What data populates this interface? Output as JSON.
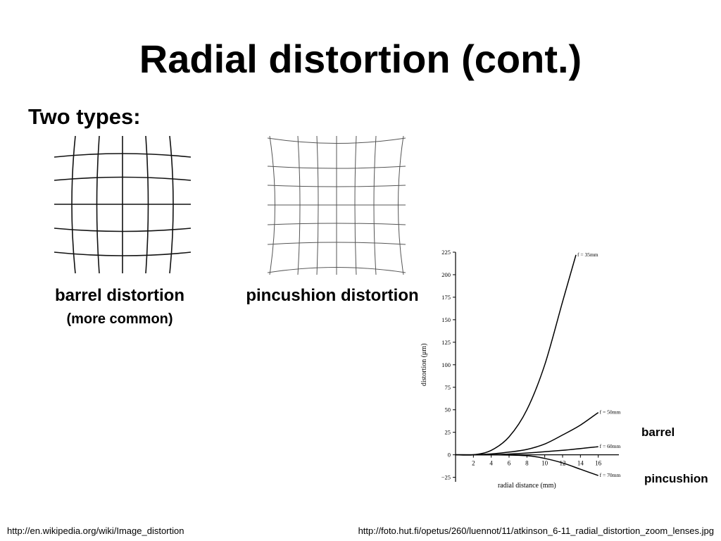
{
  "slide": {
    "title": "Radial distortion (cont.)",
    "subtitle": "Two types:",
    "barrel_caption": "barrel distortion",
    "barrel_subcaption": "(more common)",
    "pincushion_caption": "pincushion distortion",
    "barrel_label": "barrel",
    "pincushion_label": "pincushion",
    "footer_left": "http://en.wikipedia.org/wiki/Image_distortion",
    "footer_right": "http://foto.hut.fi/opetus/260/luennot/11/atkinson_6-11_radial_distortion_zoom_lenses.jpg"
  },
  "chart_data": {
    "type": "line",
    "title": "",
    "xlabel": "radial distance  (mm)",
    "ylabel": "distortion (μm)",
    "xlim": [
      0,
      18
    ],
    "ylim": [
      -30,
      225
    ],
    "x_ticks": [
      2,
      4,
      6,
      8,
      10,
      12,
      14,
      16
    ],
    "y_ticks": [
      -25,
      0,
      25,
      50,
      75,
      100,
      125,
      150,
      175,
      200,
      225
    ],
    "grid": false,
    "series": [
      {
        "name": "f = 35mm",
        "x": [
          0,
          2,
          4,
          6,
          8,
          10,
          12,
          13.5
        ],
        "y": [
          0,
          0,
          5,
          20,
          50,
          100,
          170,
          222
        ]
      },
      {
        "name": "f = 50mm",
        "x": [
          0,
          2,
          4,
          6,
          8,
          10,
          12,
          14,
          16
        ],
        "y": [
          0,
          0,
          1,
          3,
          6,
          12,
          22,
          33,
          47
        ]
      },
      {
        "name": "f = 60mm",
        "x": [
          0,
          4,
          8,
          12,
          16
        ],
        "y": [
          0,
          0,
          2,
          5,
          9
        ]
      },
      {
        "name": "f = 70mm",
        "x": [
          0,
          4,
          8,
          10,
          12,
          14,
          16
        ],
        "y": [
          0,
          0,
          -1,
          -4,
          -9,
          -16,
          -23
        ]
      }
    ]
  }
}
